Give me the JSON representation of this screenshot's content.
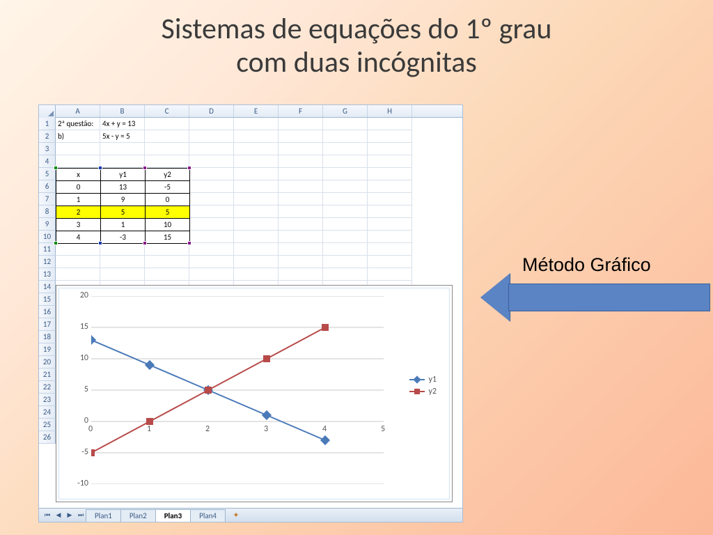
{
  "title": {
    "line1": "Sistemas de equações do 1º grau",
    "line2": "com duas incógnitas",
    "fontsize": 42,
    "color": "#3a3a3a"
  },
  "callout": {
    "text": "Método Gráfico",
    "fill_color": "#5b84c4",
    "border_color": "#3a5f9a",
    "fontsize": 27
  },
  "spreadsheet": {
    "columns": [
      "A",
      "B",
      "C",
      "D",
      "E",
      "F",
      "G",
      "H"
    ],
    "visible_rows": 26,
    "cells": {
      "A1": "2ª questão:",
      "B1": "4x + y = 13",
      "A2": "b)",
      "B2": "5x - y = 5"
    },
    "data_table": {
      "start_row": 5,
      "headers": [
        "x",
        "y1",
        "y2"
      ],
      "rows": [
        [
          "0",
          "13",
          "-5"
        ],
        [
          "1",
          "9",
          "0"
        ],
        [
          "2",
          "5",
          "5"
        ],
        [
          "3",
          "1",
          "10"
        ],
        [
          "4",
          "-3",
          "15"
        ]
      ],
      "highlight_row_index": 2,
      "highlight_color": "#ffff00",
      "selection_handles": {
        "x_col_color": "#0a8a0a",
        "y1_col_color": "#1a3aaa",
        "y2_col_color": "#8a1a8a"
      }
    },
    "tabs": [
      "Plan1",
      "Plan2",
      "Plan3",
      "Plan4"
    ],
    "active_tab_index": 2
  },
  "chart": {
    "type": "line",
    "background_color": "#ffffff",
    "border_color": "#888888",
    "inner_border_color": "#cfe3f3",
    "x_values": [
      0,
      1,
      2,
      3,
      4
    ],
    "series": [
      {
        "name": "y1",
        "values": [
          13,
          9,
          5,
          1,
          -3
        ],
        "color": "#4a7ab8",
        "marker": "diamond",
        "line_width": 2
      },
      {
        "name": "y2",
        "values": [
          -5,
          0,
          5,
          10,
          15
        ],
        "color": "#b84a4a",
        "marker": "square",
        "line_width": 2
      }
    ],
    "xlim": [
      0,
      5
    ],
    "xtick_step": 1,
    "ylim": [
      -10,
      20
    ],
    "ytick_step": 5,
    "grid_color": "#cacaca",
    "axis_label_fontsize": 12,
    "axis_label_color": "#555555",
    "legend": {
      "position": "right",
      "items": [
        "y1",
        "y2"
      ]
    }
  },
  "background_gradient": [
    "#fff5e8",
    "#ffe8d8",
    "#fcd9b8",
    "#fcc8a8",
    "#fcb898"
  ]
}
